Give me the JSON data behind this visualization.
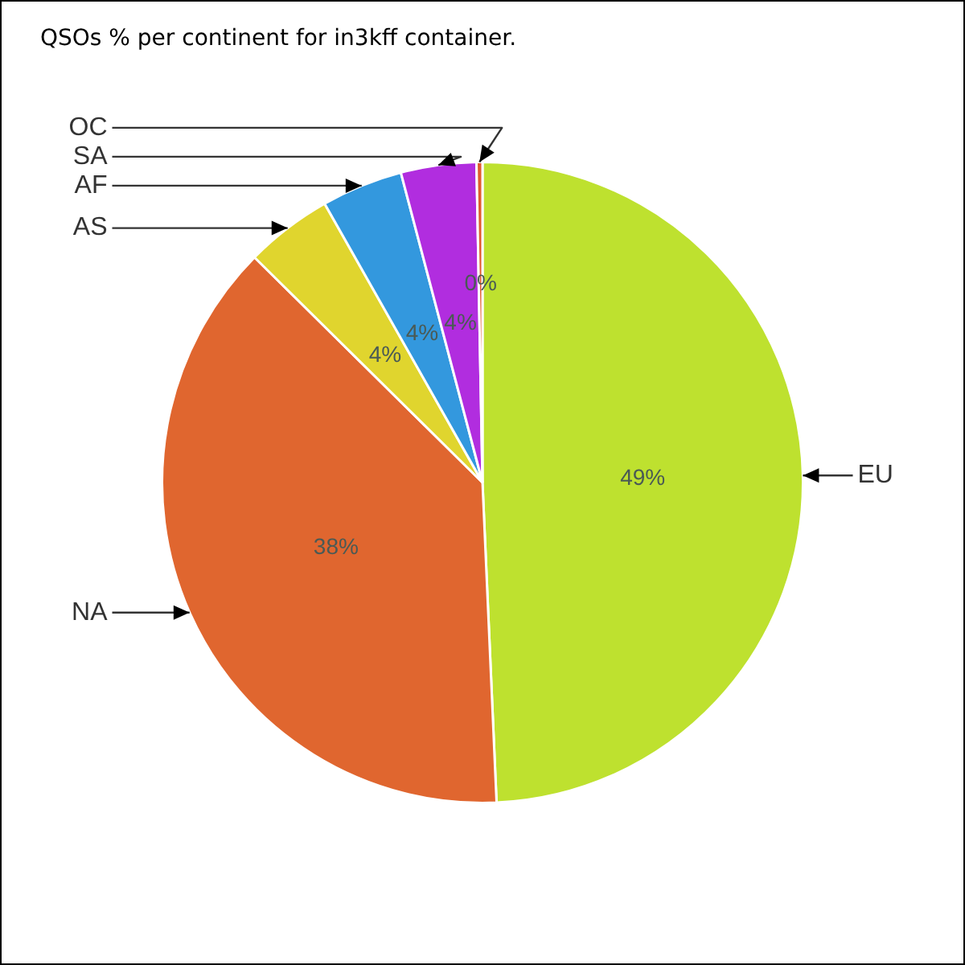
{
  "chart_data": {
    "type": "pie",
    "title": "QSOs % per continent for in3kff container.",
    "categories": [
      "EU",
      "NA",
      "AS",
      "AF",
      "SA",
      "OC"
    ],
    "values": [
      49.3,
      38.1,
      4.4,
      4.1,
      3.8,
      0.3
    ],
    "colors": [
      "#bee12f",
      "#e0662f",
      "#e0d52e",
      "#3398de",
      "#b12ddf",
      "#e05a2f"
    ],
    "value_labels": [
      "49%",
      "38%",
      "4%",
      "4%",
      "4%",
      "0%"
    ]
  }
}
